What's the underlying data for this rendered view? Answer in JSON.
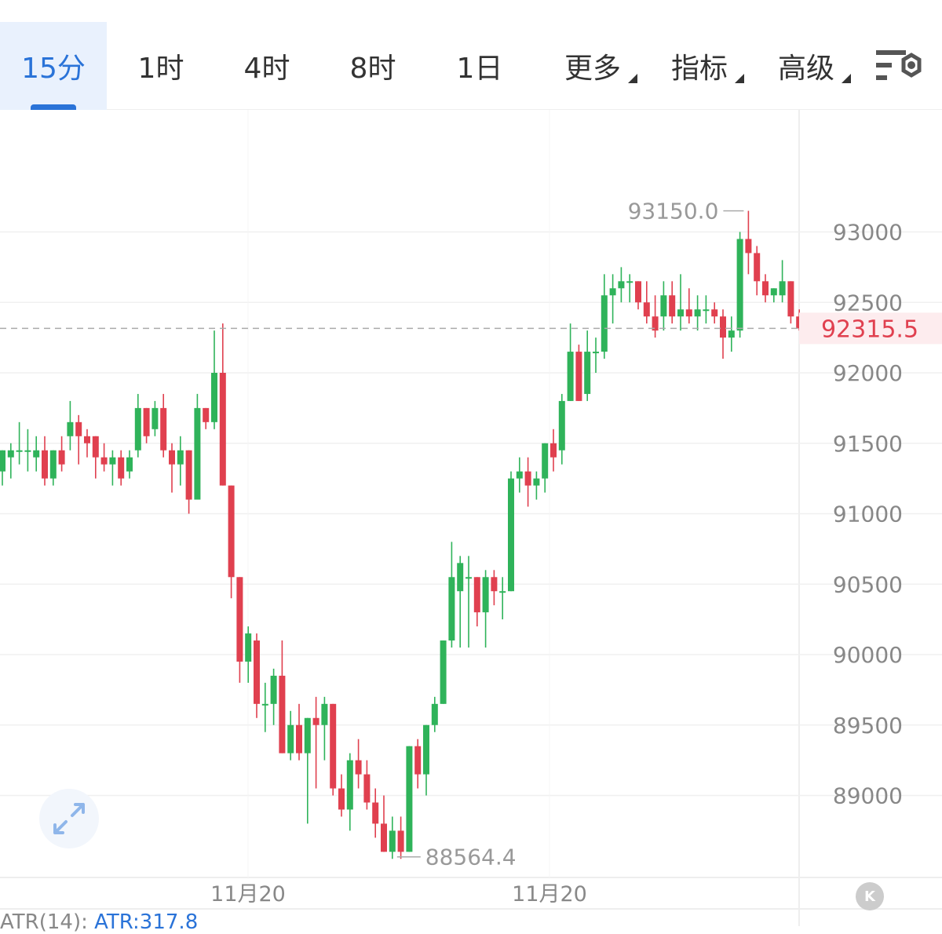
{
  "tabs": [
    {
      "label": "15分",
      "active": true
    },
    {
      "label": "1时"
    },
    {
      "label": "4时"
    },
    {
      "label": "8时"
    },
    {
      "label": "1日"
    },
    {
      "label": "更多",
      "dropdown": true
    },
    {
      "label": "指标",
      "dropdown": true
    },
    {
      "label": "高级",
      "dropdown": true
    }
  ],
  "toolbar": {
    "settings_icon": "chart-settings-icon"
  },
  "colors": {
    "up": "#2fb35a",
    "down": "#e0404f",
    "accent": "#2a73d8",
    "grid": "#f0f0f0",
    "axis_text": "#888888"
  },
  "chart_data": {
    "type": "candlestick",
    "y_ticks": [
      89000,
      89500,
      90000,
      90500,
      91000,
      91500,
      92000,
      92500,
      93000
    ],
    "x_tick_labels": [
      "11月20",
      "11月20"
    ],
    "current_price": "92315.5",
    "high_label": "93150.0",
    "low_label": "88564.4",
    "candles": [
      [
        91300,
        91450,
        91200,
        91450
      ],
      [
        91400,
        91500,
        91250,
        91450
      ],
      [
        91450,
        91650,
        91350,
        91450
      ],
      [
        91450,
        91600,
        91300,
        91450
      ],
      [
        91400,
        91550,
        91300,
        91450
      ],
      [
        91450,
        91550,
        91200,
        91250
      ],
      [
        91250,
        91450,
        91200,
        91450
      ],
      [
        91450,
        91550,
        91300,
        91350
      ],
      [
        91550,
        91800,
        91450,
        91650
      ],
      [
        91650,
        91700,
        91350,
        91550
      ],
      [
        91550,
        91600,
        91400,
        91500
      ],
      [
        91550,
        91550,
        91250,
        91400
      ],
      [
        91400,
        91500,
        91300,
        91350
      ],
      [
        91350,
        91450,
        91200,
        91400
      ],
      [
        91400,
        91450,
        91200,
        91250
      ],
      [
        91300,
        91450,
        91250,
        91400
      ],
      [
        91450,
        91850,
        91400,
        91750
      ],
      [
        91750,
        91750,
        91500,
        91550
      ],
      [
        91600,
        91800,
        91550,
        91750
      ],
      [
        91750,
        91850,
        91400,
        91450
      ],
      [
        91450,
        91500,
        91150,
        91350
      ],
      [
        91350,
        91550,
        91200,
        91450
      ],
      [
        91450,
        91450,
        91000,
        91100
      ],
      [
        91100,
        91850,
        91100,
        91750
      ],
      [
        91750,
        91750,
        91600,
        91650
      ],
      [
        91650,
        92300,
        91600,
        92000
      ],
      [
        92000,
        92350,
        91200,
        91200
      ],
      [
        91200,
        91200,
        90400,
        90550
      ],
      [
        90550,
        90550,
        89800,
        89950
      ],
      [
        89950,
        90200,
        89800,
        90150
      ],
      [
        90100,
        90150,
        89550,
        89650
      ],
      [
        89650,
        89800,
        89450,
        89650
      ],
      [
        89650,
        89900,
        89500,
        89850
      ],
      [
        89850,
        90100,
        89300,
        89300
      ],
      [
        89300,
        89600,
        89250,
        89500
      ],
      [
        89500,
        89650,
        89250,
        89300
      ],
      [
        89300,
        89550,
        88800,
        89550
      ],
      [
        89550,
        89700,
        89050,
        89500
      ],
      [
        89500,
        89700,
        89250,
        89650
      ],
      [
        89650,
        89650,
        89000,
        89050
      ],
      [
        89050,
        89150,
        88850,
        88900
      ],
      [
        88900,
        89300,
        88750,
        89250
      ],
      [
        89250,
        89400,
        89050,
        89150
      ],
      [
        89150,
        89250,
        88900,
        88950
      ],
      [
        88950,
        89050,
        88700,
        88800
      ],
      [
        88800,
        89000,
        88600,
        88600
      ],
      [
        88600,
        88850,
        88550,
        88750
      ],
      [
        88750,
        88850,
        88550,
        88600
      ],
      [
        88600,
        89350,
        88600,
        89350
      ],
      [
        89350,
        89400,
        89050,
        89150
      ],
      [
        89150,
        89500,
        89000,
        89500
      ],
      [
        89500,
        89700,
        89450,
        89650
      ],
      [
        89650,
        90100,
        89650,
        90100
      ],
      [
        90100,
        90800,
        90050,
        90550
      ],
      [
        90450,
        90700,
        90050,
        90650
      ],
      [
        90550,
        90700,
        90050,
        90550
      ],
      [
        90550,
        90550,
        90200,
        90300
      ],
      [
        90300,
        90600,
        90050,
        90550
      ],
      [
        90550,
        90600,
        90350,
        90450
      ],
      [
        90450,
        90550,
        90250,
        90450
      ],
      [
        90450,
        91300,
        90450,
        91250
      ],
      [
        91250,
        91400,
        91150,
        91300
      ],
      [
        91300,
        91400,
        91050,
        91200
      ],
      [
        91200,
        91300,
        91100,
        91250
      ],
      [
        91250,
        91500,
        91150,
        91500
      ],
      [
        91500,
        91600,
        91300,
        91400
      ],
      [
        91450,
        91850,
        91350,
        91800
      ],
      [
        91800,
        92350,
        91800,
        92150
      ],
      [
        92150,
        92200,
        91800,
        91800
      ],
      [
        91850,
        92300,
        91800,
        92150
      ],
      [
        92150,
        92250,
        92000,
        92150
      ],
      [
        92150,
        92700,
        92100,
        92550
      ],
      [
        92550,
        92700,
        92350,
        92600
      ],
      [
        92600,
        92750,
        92500,
        92650
      ],
      [
        92650,
        92700,
        92500,
        92650
      ],
      [
        92650,
        92650,
        92450,
        92500
      ],
      [
        92500,
        92650,
        92350,
        92400
      ],
      [
        92400,
        92550,
        92250,
        92300
      ],
      [
        92400,
        92650,
        92300,
        92550
      ],
      [
        92550,
        92650,
        92350,
        92400
      ],
      [
        92400,
        92700,
        92300,
        92450
      ],
      [
        92450,
        92600,
        92350,
        92400
      ],
      [
        92400,
        92550,
        92300,
        92450
      ],
      [
        92450,
        92550,
        92350,
        92450
      ],
      [
        92450,
        92500,
        92350,
        92400
      ],
      [
        92400,
        92450,
        92100,
        92250
      ],
      [
        92250,
        92400,
        92150,
        92300
      ],
      [
        92300,
        93000,
        92250,
        92950
      ],
      [
        92950,
        93150,
        92700,
        92850
      ],
      [
        92850,
        92900,
        92550,
        92650
      ],
      [
        92650,
        92700,
        92500,
        92550
      ],
      [
        92550,
        92600,
        92500,
        92600
      ],
      [
        92550,
        92800,
        92500,
        92650
      ],
      [
        92650,
        92650,
        92350,
        92400
      ],
      [
        92400,
        92450,
        92300,
        92315.5
      ]
    ]
  },
  "indicator": {
    "name": "ATR(14):",
    "value": "ATR:317.8"
  }
}
